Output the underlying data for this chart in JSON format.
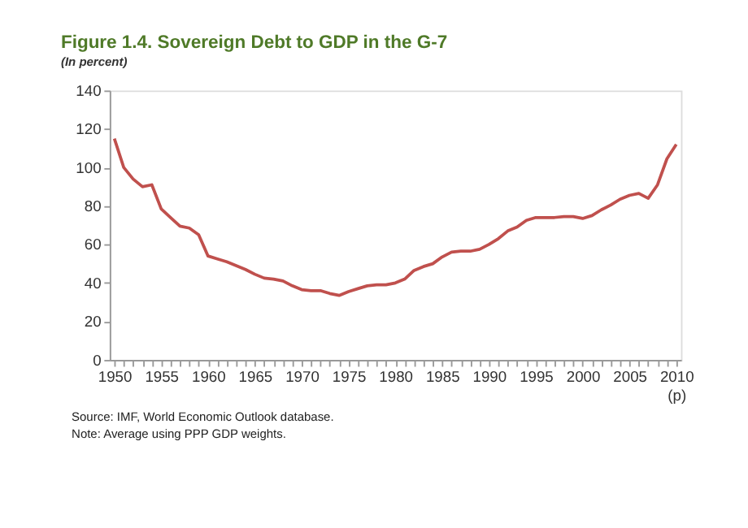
{
  "chart_data": {
    "type": "line",
    "title": "Figure 1.4. Sovereign Debt  to GDP in the G-7",
    "subtitle": "(In percent)",
    "x": [
      1950,
      1951,
      1952,
      1953,
      1954,
      1955,
      1956,
      1957,
      1958,
      1959,
      1960,
      1961,
      1962,
      1963,
      1964,
      1965,
      1966,
      1967,
      1968,
      1969,
      1970,
      1971,
      1972,
      1973,
      1974,
      1975,
      1976,
      1977,
      1978,
      1979,
      1980,
      1981,
      1982,
      1983,
      1984,
      1985,
      1986,
      1987,
      1988,
      1989,
      1990,
      1991,
      1992,
      1993,
      1994,
      1995,
      1996,
      1997,
      1998,
      1999,
      2000,
      2001,
      2002,
      2003,
      2004,
      2005,
      2006,
      2007,
      2008,
      2009,
      2010
    ],
    "series": [
      {
        "color": "#c0504d",
        "values": [
          115,
          100,
          94,
          90,
          91,
          78.5,
          74,
          69.5,
          68.5,
          65,
          54,
          52.5,
          51,
          49,
          47,
          44.5,
          42.5,
          42,
          41,
          38.5,
          36.5,
          36,
          36,
          34.5,
          33.5,
          35.5,
          37,
          38.5,
          39,
          39,
          40,
          42,
          46.5,
          48.5,
          50,
          53.5,
          56,
          56.5,
          56.5,
          57.5,
          60,
          63,
          67,
          69,
          72.5,
          74,
          74,
          74,
          74.5,
          74.5,
          73.5,
          75,
          78,
          80.5,
          83.5,
          85.5,
          86.5,
          84,
          91,
          104.5,
          112
        ]
      }
    ],
    "xlim": [
      1949.5,
      2010.5
    ],
    "xticks": [
      1950,
      {
        "value": 1951,
        "label": null
      },
      {
        "value": 1952,
        "label": null
      },
      {
        "value": 1953,
        "label": null
      },
      {
        "value": 1954,
        "label": null
      },
      1955,
      {
        "value": 1956,
        "label": null
      },
      {
        "value": 1957,
        "label": null
      },
      {
        "value": 1958,
        "label": null
      },
      {
        "value": 1959,
        "label": null
      },
      1960,
      {
        "value": 1961,
        "label": null
      },
      {
        "value": 1962,
        "label": null
      },
      {
        "value": 1963,
        "label": null
      },
      {
        "value": 1964,
        "label": null
      },
      1965,
      {
        "value": 1966,
        "label": null
      },
      {
        "value": 1967,
        "label": null
      },
      {
        "value": 1968,
        "label": null
      },
      {
        "value": 1969,
        "label": null
      },
      1970,
      {
        "value": 1971,
        "label": null
      },
      {
        "value": 1972,
        "label": null
      },
      {
        "value": 1973,
        "label": null
      },
      {
        "value": 1974,
        "label": null
      },
      1975,
      {
        "value": 1976,
        "label": null
      },
      {
        "value": 1977,
        "label": null
      },
      {
        "value": 1978,
        "label": null
      },
      {
        "value": 1979,
        "label": null
      },
      1980,
      {
        "value": 1981,
        "label": null
      },
      {
        "value": 1982,
        "label": null
      },
      {
        "value": 1983,
        "label": null
      },
      {
        "value": 1984,
        "label": null
      },
      1985,
      {
        "value": 1986,
        "label": null
      },
      {
        "value": 1987,
        "label": null
      },
      {
        "value": 1988,
        "label": null
      },
      {
        "value": 1989,
        "label": null
      },
      1990,
      {
        "value": 1991,
        "label": null
      },
      {
        "value": 1992,
        "label": null
      },
      {
        "value": 1993,
        "label": null
      },
      {
        "value": 1994,
        "label": null
      },
      1995,
      {
        "value": 1996,
        "label": null
      },
      {
        "value": 1997,
        "label": null
      },
      {
        "value": 1998,
        "label": null
      },
      {
        "value": 1999,
        "label": null
      },
      2000,
      {
        "value": 2001,
        "label": null
      },
      {
        "value": 2002,
        "label": null
      },
      {
        "value": 2003,
        "label": null
      },
      {
        "value": 2004,
        "label": null
      },
      2005,
      {
        "value": 2006,
        "label": null
      },
      {
        "value": 2007,
        "label": null
      },
      {
        "value": 2008,
        "label": null
      },
      {
        "value": 2009,
        "label": null
      },
      {
        "value": 2010,
        "label": "2010\n(p)"
      }
    ],
    "ylim": [
      0,
      140
    ],
    "yticks": [
      0,
      20,
      40,
      60,
      80,
      100,
      120,
      140
    ],
    "grid": false,
    "legend": false,
    "marker": "none",
    "line_style": "solid",
    "annotations": [
      "Source:  IMF, World Economic Outlook database.",
      "Note: Average using PPP GDP weights."
    ]
  }
}
